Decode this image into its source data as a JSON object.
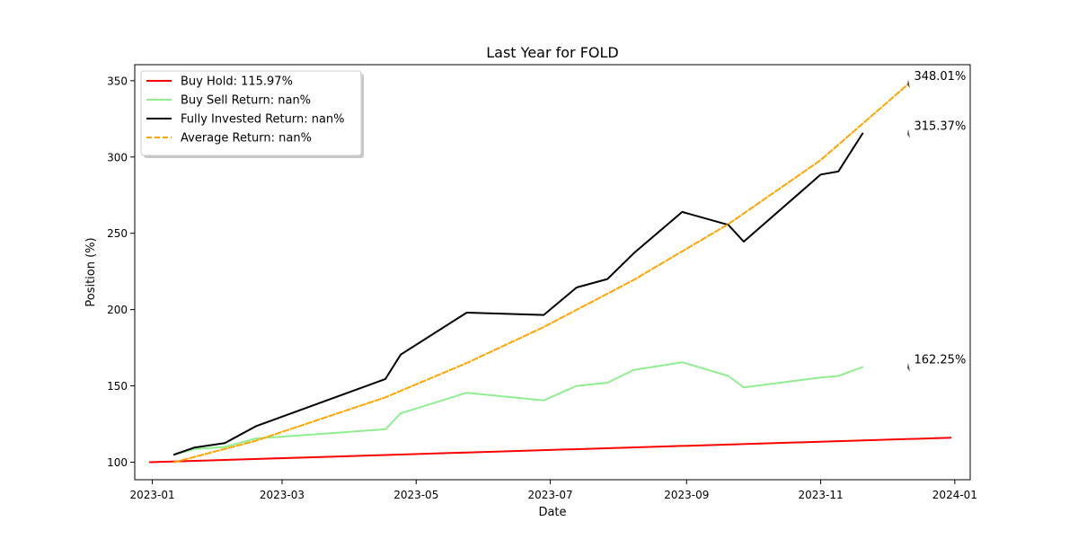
{
  "chart_data": {
    "type": "line",
    "title": "Last Year for FOLD",
    "xlabel": "Date",
    "ylabel": "Position (%)",
    "xlim": [
      "2022-12-24",
      "2024-01-08"
    ],
    "ylim": [
      88.5,
      360.5
    ],
    "x_ticks": [
      "2023-01",
      "2023-03",
      "2023-05",
      "2023-07",
      "2023-09",
      "2023-11",
      "2024-01"
    ],
    "y_ticks": [
      100,
      150,
      200,
      250,
      300,
      350
    ],
    "grid": false,
    "legend_position": "upper-left",
    "series": [
      {
        "name": "Buy Hold: 115.97%",
        "color": "#ff0000",
        "dash": "solid",
        "x": [
          "2022-12-31",
          "2023-12-30"
        ],
        "y": [
          100.0,
          115.97
        ]
      },
      {
        "name": "Buy Sell Return: nan%",
        "color": "#90ee90",
        "dash": "solid",
        "x": [
          "2023-01-11",
          "2023-01-20",
          "2023-02-03",
          "2023-02-17",
          "2023-04-17",
          "2023-04-24",
          "2023-05-24",
          "2023-06-28",
          "2023-07-13",
          "2023-07-27",
          "2023-08-08",
          "2023-08-30",
          "2023-09-20",
          "2023-09-27",
          "2023-11-01",
          "2023-11-09",
          "2023-11-20"
        ],
        "y": [
          105.0,
          108.5,
          110.0,
          115.5,
          121.5,
          132.0,
          145.5,
          140.5,
          150.0,
          152.0,
          160.5,
          165.5,
          156.5,
          149.0,
          155.5,
          156.5,
          162.25
        ]
      },
      {
        "name": "Fully Invested Return: nan%",
        "color": "#000000",
        "dash": "solid",
        "x": [
          "2023-01-11",
          "2023-01-20",
          "2023-02-03",
          "2023-02-17",
          "2023-04-17",
          "2023-04-24",
          "2023-05-24",
          "2023-06-28",
          "2023-07-13",
          "2023-07-27",
          "2023-08-08",
          "2023-08-30",
          "2023-09-20",
          "2023-09-27",
          "2023-11-01",
          "2023-11-09",
          "2023-11-20"
        ],
        "y": [
          105.0,
          109.5,
          112.5,
          123.5,
          154.5,
          170.5,
          198.0,
          196.5,
          214.5,
          220.0,
          237.0,
          264.0,
          255.5,
          244.5,
          288.5,
          290.5,
          315.37
        ]
      },
      {
        "name": "Average Return: nan%",
        "color": "#ffa500",
        "dash": "dashed",
        "x": [
          "2023-01-11",
          "2023-02-17",
          "2023-04-17",
          "2023-05-24",
          "2023-06-28",
          "2023-08-08",
          "2023-09-20",
          "2023-11-01",
          "2023-12-11"
        ],
        "y": [
          100.0,
          114.0,
          142.5,
          165.0,
          188.5,
          219.5,
          256.0,
          298.0,
          348.01
        ]
      }
    ],
    "annotations": [
      {
        "text": "348.01%",
        "x": "2023-12-11",
        "y": 348.01,
        "color": "#ffa500"
      },
      {
        "text": "315.37%",
        "x": "2023-12-11",
        "y": 315.37,
        "color": "#000000"
      },
      {
        "text": "162.25%",
        "x": "2023-12-11",
        "y": 162.25,
        "color": "#90ee90"
      }
    ]
  }
}
